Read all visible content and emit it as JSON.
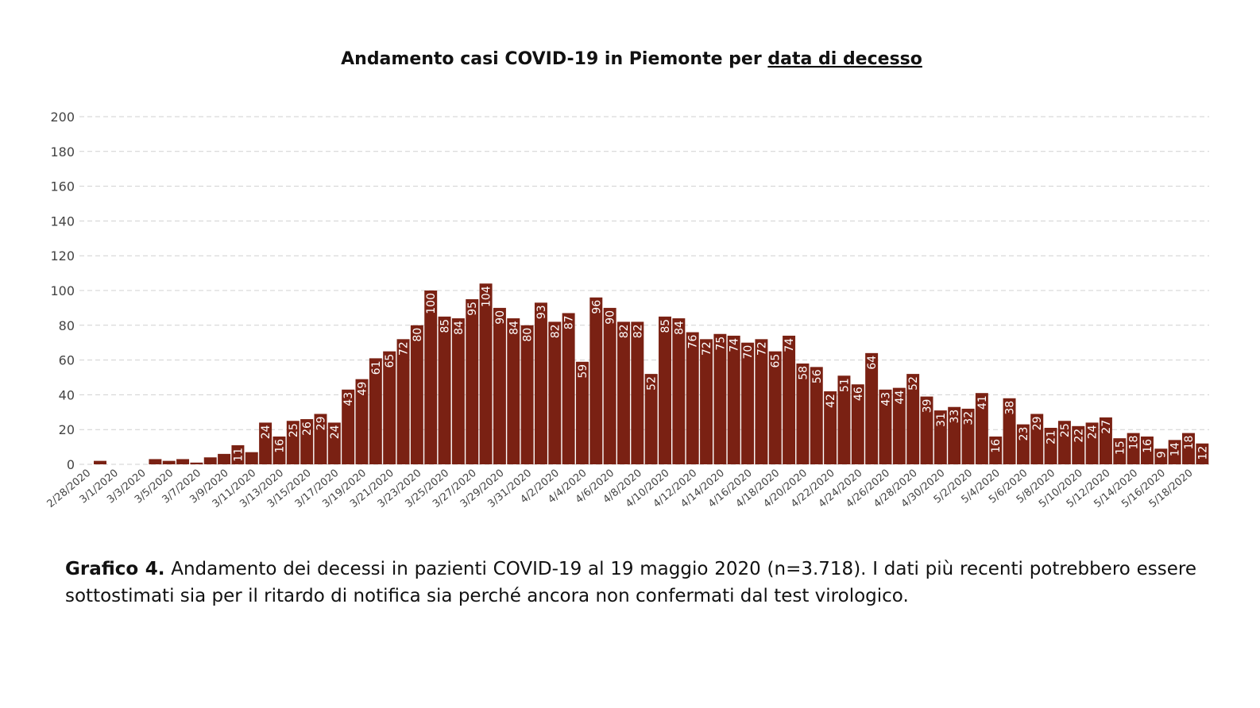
{
  "chart_data": {
    "type": "bar",
    "title": "Andamento casi COVID-19 in Piemonte per",
    "title_emphasis": "data di decesso",
    "categories": [
      "2/28/2020",
      null,
      "3/1/2020",
      null,
      "3/3/2020",
      null,
      "3/5/2020",
      null,
      "3/7/2020",
      null,
      "3/9/2020",
      null,
      "3/11/2020",
      null,
      "3/13/2020",
      null,
      "3/15/2020",
      null,
      "3/17/2020",
      null,
      "3/19/2020",
      null,
      "3/21/2020",
      null,
      "3/23/2020",
      null,
      "3/25/2020",
      null,
      "3/27/2020",
      null,
      "3/29/2020",
      null,
      "3/31/2020",
      null,
      "4/2/2020",
      null,
      "4/4/2020",
      null,
      "4/6/2020",
      null,
      "4/8/2020",
      null,
      "4/10/2020",
      null,
      "4/12/2020",
      null,
      "4/14/2020",
      null,
      "4/16/2020",
      null,
      "4/18/2020",
      null,
      "4/20/2020",
      null,
      "4/22/2020",
      null,
      "4/24/2020",
      null,
      "4/26/2020",
      null,
      "4/28/2020",
      null,
      "4/30/2020",
      null,
      "5/2/2020",
      null,
      "5/4/2020",
      null,
      "5/6/2020",
      null,
      "5/8/2020",
      null,
      "5/10/2020",
      null,
      "5/12/2020",
      null,
      "5/14/2020",
      null,
      "5/16/2020",
      null,
      "5/18/2020",
      null
    ],
    "values": [
      0,
      2,
      0,
      0,
      0,
      3,
      2,
      3,
      1,
      4,
      6,
      11,
      7,
      24,
      16,
      25,
      26,
      29,
      24,
      43,
      49,
      61,
      65,
      72,
      80,
      100,
      85,
      84,
      95,
      104,
      90,
      84,
      80,
      93,
      82,
      87,
      59,
      96,
      90,
      82,
      82,
      52,
      85,
      84,
      76,
      72,
      75,
      74,
      70,
      72,
      65,
      74,
      58,
      56,
      42,
      51,
      46,
      64,
      43,
      44,
      52,
      39,
      31,
      33,
      32,
      41,
      16,
      38,
      23,
      29,
      21,
      25,
      22,
      24,
      27,
      15,
      18,
      16,
      9,
      14,
      18,
      12
    ],
    "color": "#7a2113",
    "ylim": [
      0,
      200
    ],
    "yticks": [
      0,
      20,
      40,
      60,
      80,
      100,
      120,
      140,
      160,
      180,
      200
    ],
    "grid": true
  },
  "caption": {
    "label": "Grafico 4.",
    "text": "Andamento dei decessi in pazienti COVID-19 al 19 maggio 2020 (n=3.718). I dati più recenti potrebbero essere sottostimati sia per il ritardo di notifica sia perché ancora non confermati dal test virologico."
  }
}
